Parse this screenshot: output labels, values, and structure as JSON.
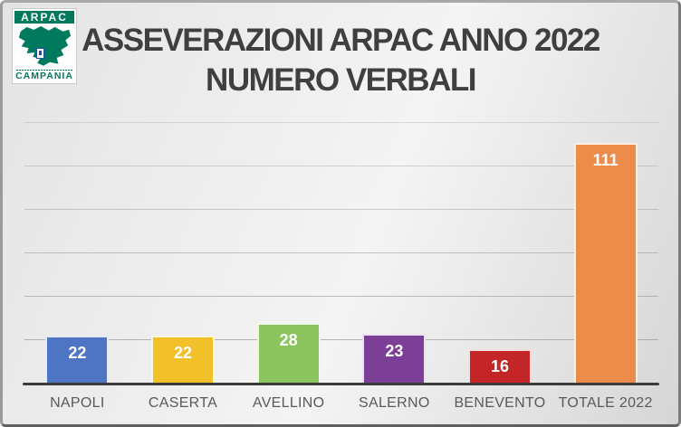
{
  "logo": {
    "org": "ARPAC",
    "region": "CAMPANIA",
    "brand_green": "#00795C"
  },
  "title": {
    "line1": "ASSEVERAZIONI ARPAC ANNO 2022",
    "line2": "NUMERO VERBALI"
  },
  "chart_data": {
    "type": "bar",
    "title": "ASSEVERAZIONI ARPAC ANNO 2022 NUMERO VERBALI",
    "categories": [
      "NAPOLI",
      "CASERTA",
      "AVELLINO",
      "SALERNO",
      "BENEVENTO",
      "TOTALE 2022"
    ],
    "values": [
      22,
      22,
      28,
      23,
      16,
      111
    ],
    "bar_colors": [
      "#4E74C4",
      "#F2C028",
      "#8BC45E",
      "#7C3F98",
      "#C42627",
      "#EC8C4A"
    ],
    "value_label_color": "#FFFFFF",
    "xlabel": "",
    "ylabel": "",
    "ylim": [
      0,
      120
    ],
    "gridline_step": 20,
    "grid": true,
    "legend": false,
    "axis_color": "#3B3B3B",
    "category_label_color": "#595959",
    "title_color": "#3F3F3F"
  }
}
